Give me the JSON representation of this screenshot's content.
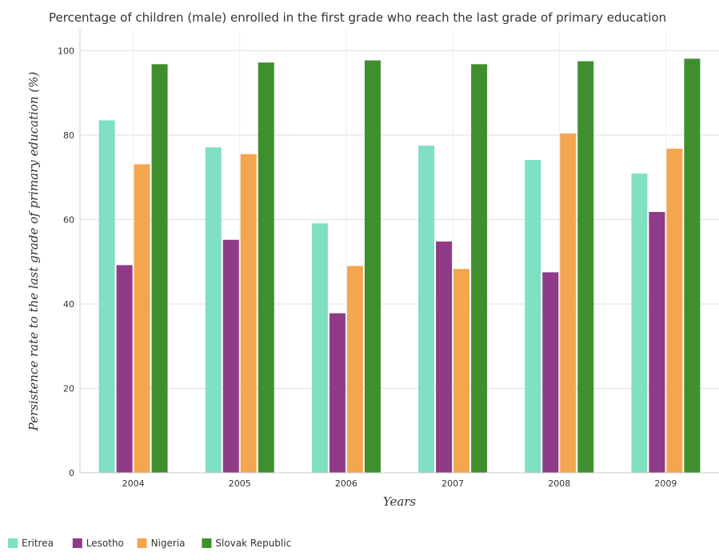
{
  "chart_data": {
    "type": "bar",
    "title": "Percentage of children (male) enrolled in the first grade who reach the last grade of primary education",
    "xlabel": "Years",
    "ylabel": "Persistence rate to the last grade of primary education (%)",
    "categories": [
      "2004",
      "2005",
      "2006",
      "2007",
      "2008",
      "2009"
    ],
    "ylim": [
      0,
      105
    ],
    "yticks": [
      0,
      20,
      40,
      60,
      80,
      100
    ],
    "grid": true,
    "legend_position": "bottom-left",
    "series": [
      {
        "name": "Eritrea",
        "color": "#7fe0c4",
        "values": [
          83.5,
          77.1,
          59.1,
          77.5,
          74.1,
          70.9
        ]
      },
      {
        "name": "Lesotho",
        "color": "#8f3b87",
        "values": [
          49.2,
          55.2,
          37.8,
          54.8,
          47.5,
          61.8
        ]
      },
      {
        "name": "Nigeria",
        "color": "#f4a64e",
        "values": [
          73.1,
          75.5,
          49.0,
          48.3,
          80.4,
          76.8
        ]
      },
      {
        "name": "Slovak Republic",
        "color": "#3f8f2f",
        "values": [
          96.8,
          97.2,
          97.7,
          96.8,
          97.5,
          98.1
        ]
      }
    ]
  }
}
